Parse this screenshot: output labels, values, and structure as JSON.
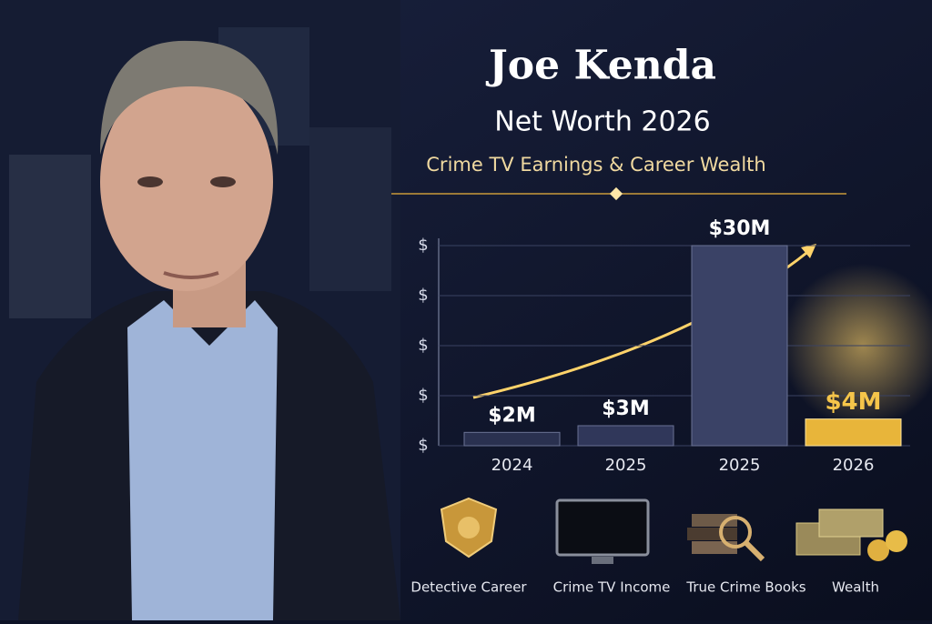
{
  "chart_data": {
    "type": "bar",
    "title": "Joe Kenda",
    "subtitle": "Net Worth 2026",
    "caption": "Crime TV Earnings & Career Wealth",
    "categories": [
      "2024",
      "2025",
      "2025",
      "2026"
    ],
    "values": [
      2,
      3,
      30,
      4
    ],
    "value_labels": [
      "$2M",
      "$3M",
      "$30M",
      "$4M"
    ],
    "colors": [
      "#2a3150",
      "#30375a",
      "#3a4266",
      "#e8b53a"
    ],
    "ylim": [
      0,
      30
    ],
    "yticks": [
      {
        "value": 0,
        "label": "$"
      },
      {
        "value": 7.5,
        "label": "$"
      },
      {
        "value": 15,
        "label": "$"
      },
      {
        "value": 22.5,
        "label": "$"
      },
      {
        "value": 30,
        "label": "$"
      }
    ],
    "grid": true
  },
  "features": [
    "Detective Career",
    "Crime TV Income",
    "True Crime Books",
    "Wealth"
  ]
}
